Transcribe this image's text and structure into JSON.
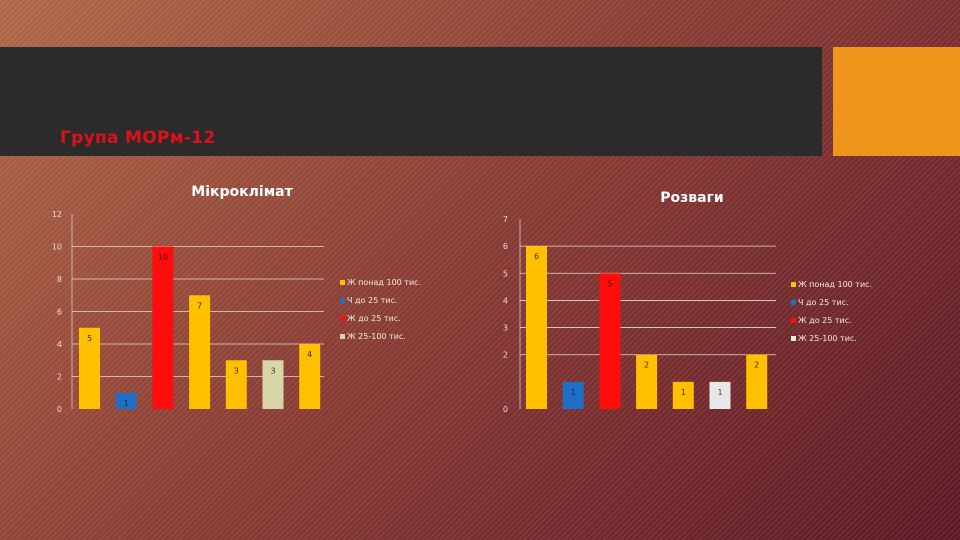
{
  "slide": {
    "title": "Група МОРм-12",
    "accent_color": "#f0951c",
    "title_color": "#e0101a"
  },
  "chart_data": [
    {
      "type": "bar",
      "title": "Мікроклімат",
      "ylim": [
        0,
        12
      ],
      "yticks": [
        0,
        2,
        4,
        6,
        8,
        10,
        12
      ],
      "grid": true,
      "legend_position": "right",
      "values": [
        5,
        1,
        10,
        7,
        3,
        3,
        4
      ],
      "value_labels": [
        "5",
        "1",
        "10",
        "7",
        "3",
        "3",
        "4"
      ],
      "bar_colors": [
        "#ffc000",
        "#1f6fc5",
        "#ff0d0d",
        "#ffc000",
        "#ffc000",
        "#d8d6a6",
        "#ffc000"
      ],
      "label_colors": [
        "#3a2a00",
        "#0a2a5a",
        "#5a0000",
        "#3a2a00",
        "#3a2a00",
        "#3a3a30",
        "#3a2a00"
      ],
      "legend": [
        {
          "label": "Ж понад 100 тис.",
          "color": "#ffc000"
        },
        {
          "label": "Ч до 25 тис.",
          "color": "#1f6fc5"
        },
        {
          "label": "Ж до 25 тис.",
          "color": "#ff0d0d"
        },
        {
          "label": "Ж 25-100 тис.",
          "color": "#d8d6a6"
        }
      ]
    },
    {
      "type": "bar",
      "title": "Розваги",
      "ylim": [
        0,
        7
      ],
      "yticks": [
        0,
        2,
        3,
        4,
        5,
        6,
        7
      ],
      "grid": true,
      "legend_position": "right",
      "values": [
        6,
        1,
        5,
        2,
        1,
        1,
        2
      ],
      "value_labels": [
        "6",
        "1",
        "5",
        "2",
        "1",
        "1",
        "2"
      ],
      "bar_colors": [
        "#ffc000",
        "#1f6fc5",
        "#ff0d0d",
        "#ffc000",
        "#ffc000",
        "#e8e8e8",
        "#ffc000"
      ],
      "label_colors": [
        "#3a2a00",
        "#0a2a5a",
        "#5a0000",
        "#3a2a00",
        "#3a2a00",
        "#404040",
        "#3a2a00"
      ],
      "legend": [
        {
          "label": "Ж понад 100 тис.",
          "color": "#ffc000"
        },
        {
          "label": "Ч до 25 тис.",
          "color": "#1f6fc5"
        },
        {
          "label": "Ж до 25 тис.",
          "color": "#ff0d0d"
        },
        {
          "label": "Ж 25-100 тис.",
          "color": "#e8e8e8"
        }
      ]
    }
  ]
}
